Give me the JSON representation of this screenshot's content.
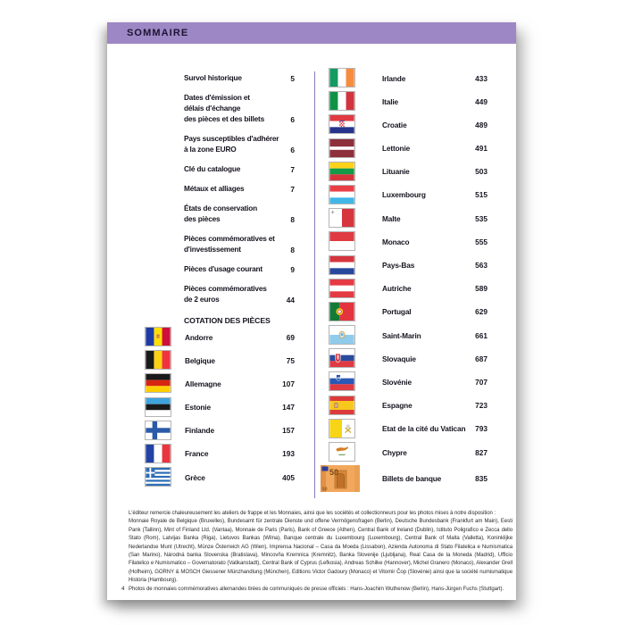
{
  "header": {
    "title": "SOMMAIRE"
  },
  "section_title": "COTATION DES PIÈCES",
  "intro_items": [
    {
      "lines": [
        "Survol historique"
      ],
      "page": "5"
    },
    {
      "lines": [
        "Dates d'émission et",
        "délais d'échange",
        "des pièces et des billets"
      ],
      "page": "6"
    },
    {
      "lines": [
        "Pays susceptibles d'adhérer",
        "à la zone EURO"
      ],
      "page": "6"
    },
    {
      "lines": [
        "Clé du catalogue"
      ],
      "page": "7"
    },
    {
      "lines": [
        "Métaux et alliages"
      ],
      "page": "7"
    },
    {
      "lines": [
        "États de conservation",
        "des pièces"
      ],
      "page": "8"
    },
    {
      "lines": [
        "Pièces commémoratives et",
        "d'investissement"
      ],
      "page": "8"
    },
    {
      "lines": [
        "Pièces d'usage courant"
      ],
      "page": "9"
    },
    {
      "lines": [
        "Pièces commémoratives",
        "de 2 euros"
      ],
      "page": "44"
    }
  ],
  "left_countries": [
    {
      "flag": "andorre",
      "label": "Andorre",
      "page": "69"
    },
    {
      "flag": "belgique",
      "label": "Belgique",
      "page": "75"
    },
    {
      "flag": "allemagne",
      "label": "Allemagne",
      "page": "107"
    },
    {
      "flag": "estonie",
      "label": "Estonie",
      "page": "147"
    },
    {
      "flag": "finlande",
      "label": "Finlande",
      "page": "157"
    },
    {
      "flag": "france",
      "label": "France",
      "page": "193"
    },
    {
      "flag": "grece",
      "label": "Grèce",
      "page": "405"
    }
  ],
  "right_countries": [
    {
      "flag": "irlande",
      "label": "Irlande",
      "page": "433"
    },
    {
      "flag": "italie",
      "label": "Italie",
      "page": "449"
    },
    {
      "flag": "croatie",
      "label": "Croatie",
      "page": "489"
    },
    {
      "flag": "lettonie",
      "label": "Lettonie",
      "page": "491"
    },
    {
      "flag": "lituanie",
      "label": "Lituanie",
      "page": "503"
    },
    {
      "flag": "luxembourg",
      "label": "Luxembourg",
      "page": "515"
    },
    {
      "flag": "malte",
      "label": "Malte",
      "page": "535"
    },
    {
      "flag": "monaco",
      "label": "Monaco",
      "page": "555"
    },
    {
      "flag": "paysbas",
      "label": "Pays-Bas",
      "page": "563"
    },
    {
      "flag": "autriche",
      "label": "Autriche",
      "page": "589"
    },
    {
      "flag": "portugal",
      "label": "Portugal",
      "page": "629"
    },
    {
      "flag": "saintmarin",
      "label": "Saint-Marin",
      "page": "661"
    },
    {
      "flag": "slovaquie",
      "label": "Slovaquie",
      "page": "687"
    },
    {
      "flag": "slovenie",
      "label": "Slovénie",
      "page": "707"
    },
    {
      "flag": "espagne",
      "label": "Espagne",
      "page": "723"
    },
    {
      "flag": "vatican",
      "label": "Etat de la cité du Vatican",
      "page": "793"
    },
    {
      "flag": "chypre",
      "label": "Chypre",
      "page": "827"
    },
    {
      "flag": "billets",
      "label": "Billets de banque",
      "page": "835"
    }
  ],
  "footnote": {
    "intro": "L'éditeur remercie chaleureusement les ateliers de frappe et les Monnaies, ainsi que les sociétés et collectionneurs pour les photos mises à notre disposition :",
    "credits": "Monnaie Royale de Belgique (Bruxelles), Bundesamt für zentrale Dienste und offene Vermögensfragen (Berlin), Deutsche Bundesbank (Frankfurt am Main), Eesti Pank (Tallinn), Mint of Finland Ltd. (Vantaa), Monnaie de Paris (Paris), Bank of Greece (Athen), Central Bank of Ireland (Dublin), Istituto Poligrafico e Zecca dello Stato (Rom), Latvijas Banka (Riga), Lietuvos Bankas (Wilna), Banque centrale du Luxembourg (Luxembourg), Central Bank of Malta (Valletta), Koninklijke Nederlandse Munt (Utrecht), Münze Österreich AG (Wien), Imprensa Nacional – Casa da Moeda (Lissabon), Azienda Autonoma di Stato Filatelica e Numismatica (San Marino), Národná banka Slovenska (Bratislava), Mincovňa Kremnica (Kremnitz), Banka Slovenije (Ljubljana), Real Casa de la Moneda (Madrid), Ufficio Filatelico e Numismatico – Governatorato (Vatikanstadt), Central Bank of Cyprus (Lefkosia), Andreas Schilke (Hannover), Michel Granero (Monaco), Alexander Grell (Hofheim), GORNY & MOSCH Giessener Münzhandlung (München), Editions Victor Gadoury (Monaco) et Vitomir Čop (Slovénie) ainsi que la société numismatique Historia (Hambourg).",
    "photos": "Photos de monnaies commémoratives allemandes tirées de communiqués de presse officiels : Hans-Joachim Wuthenow (Berlin), Hans-Jürgen Fuchs (Stuttgart)."
  },
  "page_number": "4",
  "colors": {
    "header_bg": "#9d87c4",
    "divider": "#8a7ac0",
    "ink": "#17131f"
  }
}
